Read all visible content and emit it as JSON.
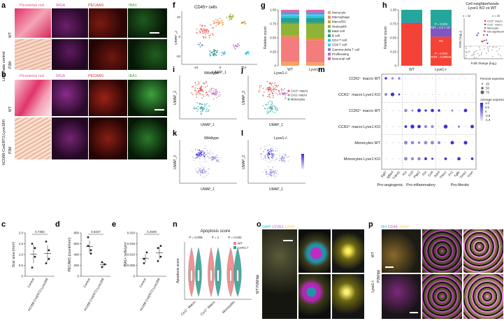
{
  "panels": {
    "a": "a",
    "b": "b",
    "c": "c",
    "d": "d",
    "e": "e",
    "f": "f",
    "g": "g",
    "h": "h",
    "i": "i",
    "j": "j",
    "k": "k",
    "l": "l",
    "m": "m",
    "n": "n",
    "o": "o",
    "p": "p"
  },
  "micro_a": {
    "channels": [
      "Picrosirius red",
      "WGA",
      "PECAM1",
      "IBA1"
    ],
    "side_group": "Littermate control",
    "side_rows": [
      "WT",
      "P2M"
    ]
  },
  "micro_b": {
    "channels": [
      "Picrosirius red",
      "WGA",
      "PECAM1",
      "IBA1"
    ],
    "side_group": "hCD68-CreERT2;Lyve1fl/fl",
    "side_rows": [
      "WT",
      "P2M"
    ]
  },
  "panel_c": {
    "ylabel": "Scar area (mm²)",
    "pval": "0.7382",
    "yticks": [
      "0",
      "0.5",
      "1.0",
      "1.5",
      "2.0"
    ],
    "groups": [
      "Control",
      "hCD68-CreERT2;Lyve1fl/fl"
    ],
    "chart_data": {
      "type": "scatter",
      "categories": [
        "Control",
        "hCD68-CreERT2;Lyve1fl/fl"
      ],
      "series": [
        {
          "points": [
            0.4,
            1.3,
            1.5,
            0.9
          ]
        },
        {
          "points": [
            0.6,
            1.2,
            1.6,
            0.8
          ]
        }
      ],
      "ylim": [
        0,
        2.0
      ]
    }
  },
  "panel_d": {
    "ylabel": "PECAM1 (count/mm²)",
    "pval": "0.0237",
    "yticks": [
      "0",
      "200",
      "400",
      "600",
      "800"
    ],
    "groups": [
      "Control",
      "hCD68-CreERT2;Lyve1fl/fl"
    ],
    "chart_data": {
      "type": "scatter",
      "categories": [
        "Control",
        "hCD68-CreERT2;Lyve1fl/fl"
      ],
      "series": [
        {
          "points": [
            720,
            420,
            560,
            480
          ]
        },
        {
          "points": [
            170,
            220,
            260
          ]
        }
      ],
      "ylim": [
        0,
        800
      ]
    }
  },
  "panel_e": {
    "ylabel": "IBA1+ cells/µm²",
    "pval": "0.2509",
    "yticks": [
      "0",
      "0.005",
      "0.010",
      "0.015",
      "0.020"
    ],
    "groups": [
      "Control",
      "hCD68-CreERT2;Lyve1fl/fl"
    ],
    "chart_data": {
      "type": "scatter",
      "categories": [
        "Control",
        "hCD68-CreERT2;Lyve1fl/fl"
      ],
      "series": [
        {
          "points": [
            0.006,
            0.011,
            0.008
          ]
        },
        {
          "points": [
            0.007,
            0.014,
            0.013,
            0.009
          ]
        }
      ],
      "ylim": [
        0,
        0.02
      ]
    }
  },
  "panel_f": {
    "title": "CD45+ cells",
    "xlabel": "UMAP_1",
    "ylabel": "UMAP_2",
    "xticks": [
      "-10",
      "0",
      "10"
    ],
    "yticks": [
      "-10",
      "0",
      "10"
    ]
  },
  "panel_g": {
    "ylabel": "Relative count",
    "yticks": [
      "0",
      "0.25",
      "0.50",
      "0.75",
      "1.00"
    ],
    "legend": [
      {
        "label": "Monocyte",
        "color": "#f4a261"
      },
      {
        "label": "Macrophage",
        "color": "#f47c7c"
      },
      {
        "label": "Macro/DC",
        "color": "#c9a227"
      },
      {
        "label": "Neutrophil",
        "color": "#8fb339"
      },
      {
        "label": "Mast cell",
        "color": "#4caf50"
      },
      {
        "label": "B cell",
        "color": "#2a9d8f"
      },
      {
        "label": "CD4 T cell",
        "color": "#26c6da"
      },
      {
        "label": "CD8 T cell",
        "color": "#4fc3f7"
      },
      {
        "label": "Gamma-delta T cell",
        "color": "#7986cb"
      },
      {
        "label": "Proliferating",
        "color": "#ba68c8"
      },
      {
        "label": "Neuronal cell",
        "color": "#f06292"
      }
    ],
    "chart_data": {
      "type": "bar",
      "categories": [
        "WT",
        "Lyve1-/-"
      ],
      "series": [
        {
          "name": "Monocyte",
          "values": [
            0.07,
            0.06
          ]
        },
        {
          "name": "Macrophage",
          "values": [
            0.45,
            0.4
          ]
        },
        {
          "name": "Macro/DC",
          "values": [
            0.03,
            0.04
          ]
        },
        {
          "name": "Neutrophil",
          "values": [
            0.2,
            0.25
          ]
        },
        {
          "name": "Mast cell",
          "values": [
            0.02,
            0.02
          ]
        },
        {
          "name": "B cell",
          "values": [
            0.08,
            0.08
          ]
        },
        {
          "name": "CD4 T cell",
          "values": [
            0.04,
            0.04
          ]
        },
        {
          "name": "CD8 T cell",
          "values": [
            0.03,
            0.03
          ]
        },
        {
          "name": "Gamma-delta T cell",
          "values": [
            0.04,
            0.04
          ]
        },
        {
          "name": "Proliferating",
          "values": [
            0.02,
            0.02
          ]
        },
        {
          "name": "Neuronal cell",
          "values": [
            0.02,
            0.02
          ]
        }
      ],
      "ylim": [
        0,
        1.0
      ]
    }
  },
  "panel_h": {
    "ylabel": "Relative count",
    "yticks": [
      "0",
      "0.25",
      "0.50",
      "0.75",
      "1.00"
    ],
    "annot": [
      "P = 0.003",
      "FDR = 4.6 × 10⁻⁴",
      "NS",
      "P = 0.004",
      "FDR = 0.00848"
    ],
    "title": "Cell neighborhoods Lyve1 KO vs WT",
    "counts_left": "n = 34",
    "counts_right": "n = 20",
    "volcano_x": "Fold change (log₂)",
    "volcano_y": "FDR (-log₁₀)",
    "volcano_legend": [
      "Ccr2⁺ macro",
      "Ccr2⁻ macro",
      "Monocyte",
      "Not significant"
    ],
    "chart_data": {
      "type": "bar",
      "categories": [
        "WT",
        "Lyve1-/-"
      ],
      "series": [
        {
          "name": "Ccr2- macro",
          "values": [
            0.75,
            0.52
          ]
        },
        {
          "name": "Monocyte",
          "values": [
            0.02,
            0.18
          ]
        },
        {
          "name": "Ccr2+ macro",
          "values": [
            0.23,
            0.3
          ]
        }
      ],
      "ylim": [
        0,
        1.0
      ]
    }
  },
  "panel_i": {
    "title": "Wildtype",
    "xlabel": "UMAP_1",
    "ylabel": "UMAP_2"
  },
  "panel_j": {
    "title": "Lyve1-/-",
    "xlabel": "UMAP_1",
    "ylabel": "UMAP_2",
    "legend": [
      {
        "label": "Ccr2+ macro",
        "color": "#e06666"
      },
      {
        "label": "Ccr2- macro",
        "color": "#c586c0"
      },
      {
        "label": "Monocytes",
        "color": "#4fb0b0"
      }
    ]
  },
  "panel_k": {
    "title": "Wildtype",
    "xlabel": "UMAP_1",
    "ylabel": "UMAP_2"
  },
  "panel_l": {
    "title": "Lyve1-/-",
    "xlabel": "UMAP_1",
    "ylabel": "UMAP_2"
  },
  "panel_m": {
    "rows": [
      "CCR2⁻ macro WT",
      "CCR2⁻ macro Lyve1 KO",
      "CCR2⁺ macro WT",
      "CCR2⁺ macro Lyve1 KO",
      "Monocytes WT",
      "Monocytes Lyve1 KO"
    ],
    "genes": [
      "Egfl7",
      "Igfbp4",
      "Tnfrsf1",
      "Il1a",
      "Ccl3",
      "Ptgs2",
      "Il1b",
      "Ccl4",
      "Sdc4",
      "Thbs1",
      "Fn1",
      "Tgfbi",
      "Timp1",
      "Vcan"
    ],
    "groups": [
      "Pro-angiogenic",
      "Pro-inflammatory",
      "Pro-fibrotic"
    ],
    "legend_size_title": "Percent expressed",
    "legend_sizes": [
      "25",
      "50",
      "75"
    ],
    "legend_color_title": "Average expression",
    "legend_colors": [
      "1.0",
      "0.5",
      "0",
      "-0.5",
      "-1.0"
    ]
  },
  "panel_n": {
    "title": "Apoptosis score",
    "ylabel": "Apoptosis score",
    "pvals": [
      "P = 0.006",
      "P = 1",
      "P = 0.032"
    ],
    "legend": [
      {
        "label": "WT",
        "color": "#f08080"
      },
      {
        "label": "Lyve1-/-",
        "color": "#2a9d8f"
      }
    ],
    "categories": [
      "Ccr2⁻ Macro",
      "Ccr2⁺ Macro",
      "Monocytes"
    ]
  },
  "panel_o": {
    "channels": [
      "DAPI",
      "LYVE1",
      "HABP"
    ],
    "side": "WT P2M/dpi"
  },
  "panel_p": {
    "channels": [
      "IB4",
      "CD44",
      "HABP"
    ],
    "side_group": "P2M/dpi",
    "side_rows": [
      "WT",
      "Lyve1-/-"
    ]
  }
}
